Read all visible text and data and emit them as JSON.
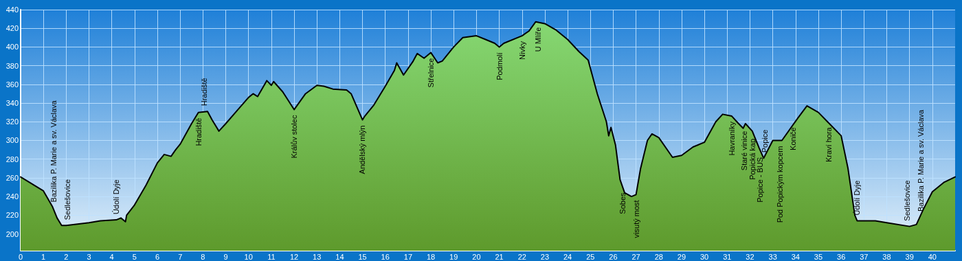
{
  "chart_data": {
    "type": "area",
    "x": [
      0,
      1,
      1.4,
      1.6,
      1.8,
      2,
      3,
      3.5,
      4.2,
      4.4,
      4.6,
      4.65,
      5,
      5.5,
      6,
      6.3,
      6.6,
      6.8,
      7,
      7.5,
      7.8,
      8.2,
      8.4,
      8.7,
      9,
      9.5,
      10,
      10.2,
      10.4,
      10.8,
      11,
      11.1,
      11.5,
      12,
      12.5,
      13,
      13.3,
      13.7,
      14.3,
      14.5,
      15,
      15.1,
      15.5,
      16,
      16.4,
      16.5,
      16.8,
      17.2,
      17.4,
      17.7,
      18,
      18.3,
      18.5,
      19,
      19.4,
      20,
      20.4,
      20.8,
      21,
      21.2,
      22,
      22.3,
      22.6,
      23,
      23.5,
      24,
      24.5,
      24.9,
      25.3,
      25.7,
      25.8,
      25.9,
      26.1,
      26.3,
      26.5,
      26.8,
      27,
      27.2,
      27.5,
      27.7,
      28,
      28.6,
      29,
      29.5,
      30,
      30.5,
      30.8,
      31.2,
      31.5,
      31.7,
      31.8,
      32.1,
      32.4,
      32.6,
      33,
      33.4,
      34.1,
      34.5,
      35,
      35.4,
      36,
      36.3,
      36.6,
      36.7,
      37,
      37.5,
      38,
      39,
      39.3,
      39.6,
      40,
      40.5,
      41
    ],
    "series": [
      {
        "color": "#86d873",
        "values": [
          261,
          246,
          229,
          217,
          209,
          209,
          212,
          214,
          215,
          217,
          213,
          220,
          231,
          252,
          276,
          285,
          283,
          290,
          296,
          318,
          330,
          331,
          322,
          310,
          318,
          332,
          346,
          350,
          347,
          364,
          359,
          363,
          352,
          333,
          350,
          359,
          358,
          355,
          354,
          350,
          322,
          326,
          338,
          358,
          375,
          383,
          370,
          384,
          393,
          388,
          394,
          383,
          385,
          400,
          410,
          412,
          408,
          404,
          400,
          404,
          412,
          417,
          427,
          425,
          418,
          408,
          395,
          386,
          350,
          320,
          305,
          314,
          295,
          258,
          244,
          240,
          242,
          270,
          300,
          307,
          303,
          282,
          284,
          293,
          298,
          320,
          328,
          326,
          318,
          313,
          318,
          310,
          292,
          281,
          300,
          300,
          324,
          337,
          330,
          320,
          305,
          270,
          220,
          214,
          214,
          214,
          212,
          208,
          210,
          226,
          245,
          255,
          261
        ]
      }
    ],
    "xlim": [
      0,
      41
    ],
    "xticks": [
      0,
      1,
      2,
      3,
      4,
      5,
      6,
      7,
      8,
      9,
      10,
      11,
      12,
      13,
      14,
      15,
      16,
      17,
      18,
      19,
      20,
      21,
      22,
      23,
      24,
      25,
      26,
      27,
      28,
      29,
      30,
      31,
      32,
      33,
      34,
      35,
      36,
      37,
      38,
      39,
      40
    ],
    "ylim": [
      182,
      440
    ],
    "yticks": [
      200,
      220,
      240,
      260,
      280,
      300,
      320,
      340,
      360,
      380,
      400,
      420,
      440
    ],
    "grid": true,
    "marker": "none",
    "line_style": "solid",
    "annotations": [
      {
        "text": "Bazilika P. Marie a sv. Václava",
        "x": 1.45,
        "y": 228
      },
      {
        "text": "Sedlešovice",
        "x": 2.05,
        "y": 209
      },
      {
        "text": "Údolí Dyje",
        "x": 4.2,
        "y": 215
      },
      {
        "text": "Hradiště",
        "x": 7.8,
        "y": 330
      },
      {
        "text": "Hradiště",
        "x": 8.05,
        "y": 331
      },
      {
        "text": "Králův stolec",
        "x": 12.0,
        "y": 333
      },
      {
        "text": "Andělský mlýn",
        "x": 14.97,
        "y": 322
      },
      {
        "text": "Střelnice",
        "x": 18.0,
        "y": 394
      },
      {
        "text": "Podmolí",
        "x": 21.0,
        "y": 400
      },
      {
        "text": "Nivky",
        "x": 22.0,
        "y": 412
      },
      {
        "text": "U Mlíře",
        "x": 22.7,
        "y": 427
      },
      {
        "text": "Sobes",
        "x": 26.4,
        "y": 250
      },
      {
        "text": "visutý most",
        "x": 27.0,
        "y": 242
      },
      {
        "text": "Havraníky",
        "x": 31.2,
        "y": 326
      },
      {
        "text": "Staré vinice",
        "x": 31.75,
        "y": 316
      },
      {
        "text": "Popická kap.",
        "x": 32.1,
        "y": 310
      },
      {
        "text": "Popice - BUS",
        "x": 32.45,
        "y": 288
      },
      {
        "text": "Popice",
        "x": 32.65,
        "y": 281
      },
      {
        "text": "Pod Popickým kopcem",
        "x": 33.3,
        "y": 300
      },
      {
        "text": "Koniče",
        "x": 33.9,
        "y": 320
      },
      {
        "text": "Kraví hora",
        "x": 35.45,
        "y": 320
      },
      {
        "text": "Údolí Dyje",
        "x": 36.7,
        "y": 214
      },
      {
        "text": "Sedlešovice",
        "x": 38.9,
        "y": 208
      },
      {
        "text": "Bazilika P. Marie a sv. Václava",
        "x": 39.5,
        "y": 218
      }
    ]
  }
}
